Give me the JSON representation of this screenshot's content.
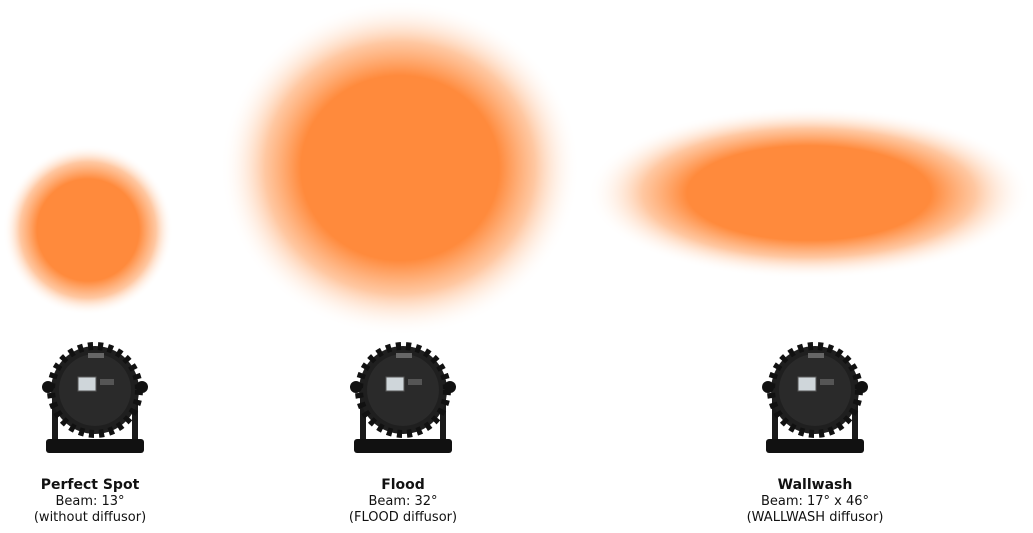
{
  "colors": {
    "beam": "#ff8a3c",
    "fixture": "#1f1f1f",
    "fixture_dark": "#0d0d0d"
  },
  "items": [
    {
      "name": "Perfect Spot",
      "beam": "Beam: 13°",
      "diffusor": "(without diffusor)"
    },
    {
      "name": "Flood",
      "beam": "Beam: 32°",
      "diffusor": "(FLOOD diffusor)"
    },
    {
      "name": "Wallwash",
      "beam": "Beam: 17° x 46°",
      "diffusor": "(WALLWASH diffusor)"
    }
  ]
}
